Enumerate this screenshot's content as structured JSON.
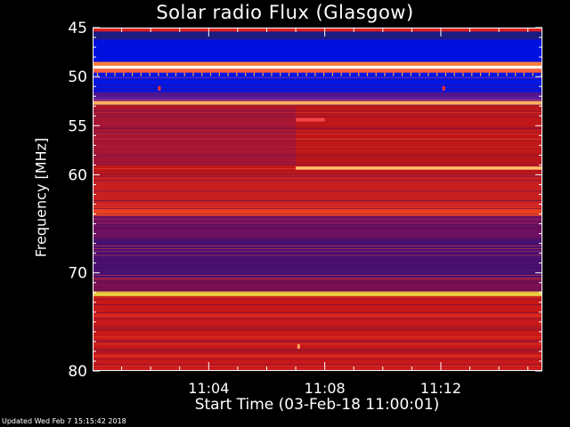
{
  "chart_data": {
    "type": "heatmap",
    "title": "Solar radio Flux (Glasgow)",
    "ylabel": "Frequency [MHz]",
    "xlabel": "Start Time (03-Feb-18 11:00:01)",
    "footer": "Updated Wed Feb  7 15:15:42 2018",
    "x_axis": {
      "unit": "minutes",
      "range_minutes": [
        0,
        15.5
      ],
      "ticks_minutes": [
        4,
        8,
        12
      ],
      "tick_labels": [
        "11:04",
        "11:08",
        "11:12"
      ]
    },
    "y_axis": {
      "unit": "MHz",
      "range": [
        45,
        80
      ],
      "inverted": true,
      "ticks": [
        45,
        50,
        55,
        60,
        70,
        80
      ],
      "tick_labels": [
        "45",
        "50",
        "55",
        "60",
        "70",
        "80"
      ]
    },
    "colors": {
      "background": "#000000",
      "low": "#0000d0",
      "mid": "#c01818",
      "high": "#ffff80",
      "frame": "#ffffff"
    },
    "bands": [
      {
        "from": 45.0,
        "to": 45.4,
        "color": "#e02020"
      },
      {
        "from": 45.4,
        "to": 46.2,
        "color": "#1c1c80"
      },
      {
        "from": 46.2,
        "to": 48.5,
        "color": "#0010e0"
      },
      {
        "from": 48.5,
        "to": 48.9,
        "color": "#ff8040"
      },
      {
        "from": 48.9,
        "to": 49.2,
        "color": "#fffff0"
      },
      {
        "from": 49.2,
        "to": 49.6,
        "color": "#ff6040"
      },
      {
        "from": 49.6,
        "to": 51.6,
        "color": "#0018f0"
      },
      {
        "from": 51.6,
        "to": 52.5,
        "color": "#5a1aa0"
      },
      {
        "from": 52.5,
        "to": 52.9,
        "color": "#ffb060"
      },
      {
        "from": 52.9,
        "to": 60.0,
        "color": "#c01818"
      },
      {
        "from": 60.0,
        "to": 63.5,
        "color": "#c82020"
      },
      {
        "from": 63.5,
        "to": 64.2,
        "color": "#e84020"
      },
      {
        "from": 64.2,
        "to": 66.5,
        "color": "#701060"
      },
      {
        "from": 66.5,
        "to": 70.5,
        "color": "#4a1070"
      },
      {
        "from": 70.5,
        "to": 71.9,
        "color": "#7a1050"
      },
      {
        "from": 71.9,
        "to": 72.4,
        "color": "#ffe040"
      },
      {
        "from": 72.4,
        "to": 80.0,
        "color": "#c81818"
      }
    ],
    "features": [
      {
        "type": "line",
        "freq": 59.3,
        "start_minute": 7.0,
        "end_minute": 15.5,
        "color": "#ffc070"
      },
      {
        "type": "blob",
        "freq": 54.4,
        "start_minute": 7.0,
        "end_minute": 8.0,
        "color": "#ff5050"
      },
      {
        "type": "dot",
        "freq": 51.2,
        "minute": 2.3,
        "color": "#ff3030"
      },
      {
        "type": "dot",
        "freq": 51.2,
        "minute": 12.1,
        "color": "#ff3030"
      },
      {
        "type": "dot",
        "freq": 77.5,
        "minute": 7.1,
        "color": "#ffa060"
      }
    ]
  }
}
